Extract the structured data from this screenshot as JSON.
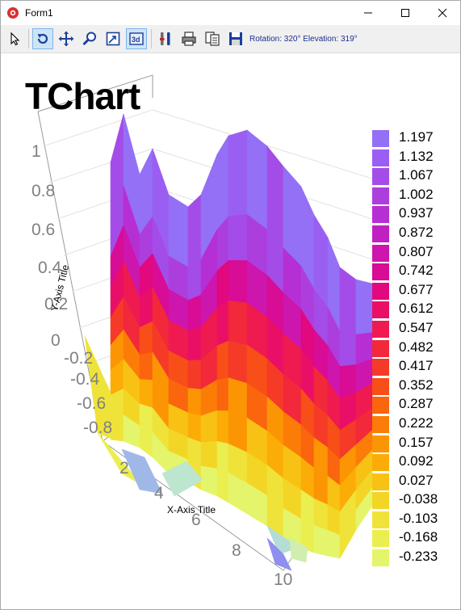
{
  "window": {
    "title": "Form1",
    "icon": "red-circle-app-icon",
    "controls": [
      "minimize-icon",
      "maximize-icon",
      "close-icon"
    ]
  },
  "toolbar": {
    "buttons": [
      {
        "name": "select-arrow-icon",
        "active": false
      },
      {
        "name": "rotate-icon",
        "active": true
      },
      {
        "name": "move-icon",
        "active": false
      },
      {
        "name": "zoom-icon",
        "active": false
      },
      {
        "name": "depth-icon",
        "active": false
      },
      {
        "name": "3d-view-icon",
        "active": true
      },
      {
        "name": "edit-chart-icon",
        "active": false
      },
      {
        "name": "print-icon",
        "active": false
      },
      {
        "name": "copy-icon",
        "active": false
      },
      {
        "name": "save-icon",
        "active": false
      }
    ],
    "status": "Rotation: 320° Elevation: 319°"
  },
  "chart_data": {
    "type": "surface",
    "title": "TChart",
    "xlabel": "X-Axis Title",
    "ylabel": "Y-Axis Title",
    "x_ticks": [
      "2",
      "4",
      "6",
      "8",
      "10"
    ],
    "y_ticks": [
      "1",
      "0.8",
      "0.6",
      "0.4",
      "0.2",
      "0",
      "-0.2",
      "-0.4",
      "-0.6",
      "-0.8"
    ],
    "legend_position": "right",
    "legend": [
      {
        "label": "1.197",
        "color": "#9370f5"
      },
      {
        "label": "1.132",
        "color": "#9b5ef2"
      },
      {
        "label": "1.067",
        "color": "#a44ce8"
      },
      {
        "label": "1.002",
        "color": "#ad3ede"
      },
      {
        "label": "0.937",
        "color": "#b62fd4"
      },
      {
        "label": "0.872",
        "color": "#c020c2"
      },
      {
        "label": "0.807",
        "color": "#cc16ad"
      },
      {
        "label": "0.742",
        "color": "#d80c95"
      },
      {
        "label": "0.677",
        "color": "#e2087d"
      },
      {
        "label": "0.612",
        "color": "#ea0f66"
      },
      {
        "label": "0.547",
        "color": "#ef1a50"
      },
      {
        "label": "0.482",
        "color": "#f2283b"
      },
      {
        "label": "0.417",
        "color": "#f53a28"
      },
      {
        "label": "0.352",
        "color": "#f84e18"
      },
      {
        "label": "0.287",
        "color": "#fa650d"
      },
      {
        "label": "0.222",
        "color": "#fb7d07"
      },
      {
        "label": "0.157",
        "color": "#fc9504"
      },
      {
        "label": "0.092",
        "color": "#fcac06"
      },
      {
        "label": "0.027",
        "color": "#f8c214"
      },
      {
        "label": "-0.038",
        "color": "#f3d526"
      },
      {
        "label": "-0.103",
        "color": "#efe33a"
      },
      {
        "label": "-0.168",
        "color": "#ebee4f"
      },
      {
        "label": "-0.233",
        "color": "#e4f56b"
      }
    ]
  }
}
